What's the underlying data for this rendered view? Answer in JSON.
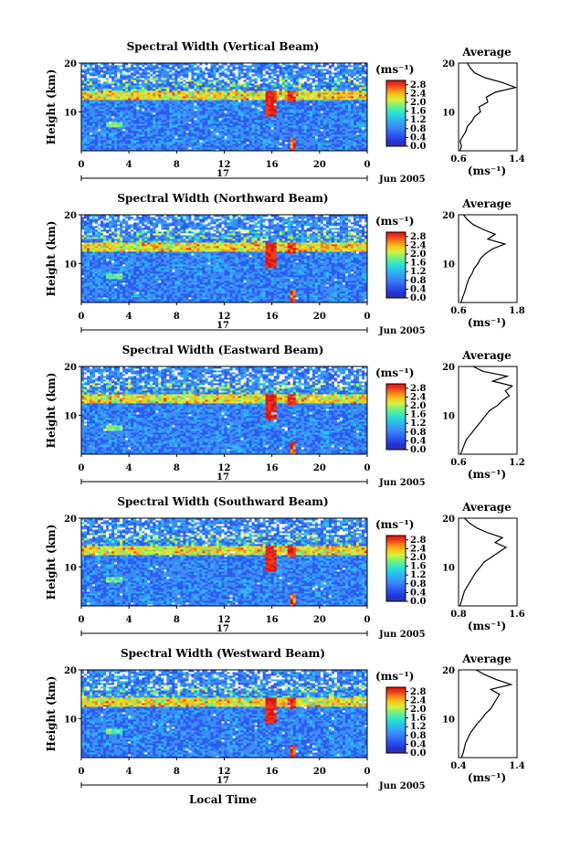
{
  "figure": {
    "xlabel": "Local Time",
    "date_label": "17",
    "month_label": "Jun 2005",
    "ylabel": "Height (km)",
    "colorbar_unit": "(ms⁻¹)",
    "profile_title": "Average",
    "profile_unit": "(ms⁻¹)"
  },
  "chart_data": [
    {
      "type": "heatmap",
      "title": "Spectral Width (Vertical Beam)",
      "xlabel": "Local Time",
      "ylabel": "Height (km)",
      "x_ticks": [
        "0",
        "4",
        "8",
        "12",
        "16",
        "20",
        "0"
      ],
      "y_ticks": [
        "10",
        "20"
      ],
      "xlim": [
        0,
        24
      ],
      "ylim": [
        2,
        20
      ],
      "colorbar": {
        "label": "(ms⁻¹)",
        "ticks": [
          "0.0",
          "0.4",
          "0.8",
          "1.2",
          "1.6",
          "2.0",
          "2.4",
          "2.8"
        ],
        "range": [
          0,
          3.0
        ],
        "colors": [
          "#3a3a7a",
          "#1f2fd6",
          "#2d5bf2",
          "#3b8df5",
          "#27c0f0",
          "#2ee8c7",
          "#7ef07a",
          "#d5f03b",
          "#f7c51d",
          "#f7841a",
          "#ef3a1b",
          "#d81414"
        ]
      },
      "average_profile": {
        "title": "Average",
        "xlabel": "(ms⁻¹)",
        "x_ticks": [
          "0.6",
          "1.4"
        ],
        "xlim": [
          0.6,
          1.4
        ],
        "height": [
          2,
          3,
          4,
          5,
          6,
          7,
          8,
          9,
          10,
          11,
          12,
          13,
          14,
          15,
          16,
          17,
          18,
          19,
          20
        ],
        "value": [
          0.62,
          0.64,
          0.62,
          0.66,
          0.7,
          0.72,
          0.78,
          0.82,
          0.9,
          0.88,
          1.0,
          0.98,
          1.1,
          1.38,
          1.2,
          0.96,
          0.82,
          0.76,
          0.72
        ]
      }
    },
    {
      "type": "heatmap",
      "title": "Spectral Width (Northward Beam)",
      "xlabel": "Local Time",
      "ylabel": "Height (km)",
      "x_ticks": [
        "0",
        "4",
        "8",
        "12",
        "16",
        "20",
        "0"
      ],
      "y_ticks": [
        "10",
        "20"
      ],
      "xlim": [
        0,
        24
      ],
      "ylim": [
        2,
        20
      ],
      "colorbar": {
        "label": "(ms⁻¹)",
        "ticks": [
          "0.0",
          "0.4",
          "0.8",
          "1.2",
          "1.6",
          "2.0",
          "2.4",
          "2.8"
        ],
        "range": [
          0,
          3.0
        ]
      },
      "average_profile": {
        "title": "Average",
        "xlabel": "(ms⁻¹)",
        "x_ticks": [
          "0.6",
          "1.8"
        ],
        "xlim": [
          0.6,
          1.8
        ],
        "height": [
          2,
          3,
          4,
          5,
          6,
          7,
          8,
          9,
          10,
          11,
          12,
          13,
          14,
          15,
          16,
          17,
          18,
          19,
          20
        ],
        "value": [
          0.65,
          0.68,
          0.72,
          0.75,
          0.78,
          0.82,
          0.88,
          0.92,
          1.0,
          1.05,
          1.15,
          1.3,
          1.55,
          1.2,
          1.35,
          1.1,
          0.9,
          0.78,
          0.7
        ]
      }
    },
    {
      "type": "heatmap",
      "title": "Spectral Width (Eastward Beam)",
      "xlabel": "Local Time",
      "ylabel": "Height (km)",
      "x_ticks": [
        "0",
        "4",
        "8",
        "12",
        "16",
        "20",
        "0"
      ],
      "y_ticks": [
        "10",
        "20"
      ],
      "xlim": [
        0,
        24
      ],
      "ylim": [
        2,
        20
      ],
      "colorbar": {
        "label": "(ms⁻¹)",
        "ticks": [
          "0.0",
          "0.4",
          "0.8",
          "1.2",
          "1.6",
          "2.0",
          "2.4",
          "2.8"
        ],
        "range": [
          0,
          3.0
        ]
      },
      "average_profile": {
        "title": "Average",
        "xlabel": "(ms⁻¹)",
        "x_ticks": [
          "0.6",
          "1.2"
        ],
        "xlim": [
          0.6,
          1.2
        ],
        "height": [
          2,
          3,
          4,
          5,
          6,
          7,
          8,
          9,
          10,
          11,
          12,
          13,
          14,
          15,
          16,
          17,
          18,
          19,
          20
        ],
        "value": [
          0.62,
          0.64,
          0.66,
          0.68,
          0.72,
          0.76,
          0.8,
          0.84,
          0.88,
          0.92,
          1.0,
          1.05,
          1.12,
          1.08,
          1.15,
          0.95,
          1.1,
          0.85,
          0.75
        ]
      }
    },
    {
      "type": "heatmap",
      "title": "Spectral Width (Southward Beam)",
      "xlabel": "Local Time",
      "ylabel": "Height (km)",
      "x_ticks": [
        "0",
        "4",
        "8",
        "12",
        "16",
        "20",
        "0"
      ],
      "y_ticks": [
        "10",
        "20"
      ],
      "xlim": [
        0,
        24
      ],
      "ylim": [
        2,
        20
      ],
      "colorbar": {
        "label": "(ms⁻¹)",
        "ticks": [
          "0.0",
          "0.4",
          "0.8",
          "1.2",
          "1.6",
          "2.0",
          "2.4",
          "2.8"
        ],
        "range": [
          0,
          3.0
        ]
      },
      "average_profile": {
        "title": "Average",
        "xlabel": "(ms⁻¹)",
        "x_ticks": [
          "0.8",
          "1.6"
        ],
        "xlim": [
          0.8,
          1.6
        ],
        "height": [
          2,
          3,
          4,
          5,
          6,
          7,
          8,
          9,
          10,
          11,
          12,
          13,
          14,
          15,
          16,
          17,
          18,
          19,
          20
        ],
        "value": [
          0.82,
          0.84,
          0.86,
          0.88,
          0.92,
          0.96,
          1.0,
          1.04,
          1.1,
          1.15,
          1.25,
          1.35,
          1.45,
          1.3,
          1.4,
          1.2,
          1.05,
          0.95,
          0.88
        ]
      }
    },
    {
      "type": "heatmap",
      "title": "Spectral Width (Westward Beam)",
      "xlabel": "Local Time",
      "ylabel": "Height (km)",
      "x_ticks": [
        "0",
        "4",
        "8",
        "12",
        "16",
        "20",
        "0"
      ],
      "y_ticks": [
        "10",
        "20"
      ],
      "xlim": [
        0,
        24
      ],
      "ylim": [
        2,
        20
      ],
      "colorbar": {
        "label": "(ms⁻¹)",
        "ticks": [
          "0.0",
          "0.4",
          "0.8",
          "1.2",
          "1.6",
          "2.0",
          "2.4",
          "2.8"
        ],
        "range": [
          0,
          3.0
        ]
      },
      "average_profile": {
        "title": "Average",
        "xlabel": "(ms⁻¹)",
        "x_ticks": [
          "0.4",
          "1.4"
        ],
        "xlim": [
          0.4,
          1.4
        ],
        "height": [
          2,
          3,
          4,
          5,
          6,
          7,
          8,
          9,
          10,
          11,
          12,
          13,
          14,
          15,
          16,
          17,
          18,
          19,
          20
        ],
        "value": [
          0.45,
          0.48,
          0.5,
          0.52,
          0.56,
          0.6,
          0.66,
          0.72,
          0.8,
          0.86,
          0.95,
          1.0,
          1.05,
          1.1,
          0.95,
          1.3,
          1.05,
          0.85,
          0.7
        ]
      }
    }
  ]
}
